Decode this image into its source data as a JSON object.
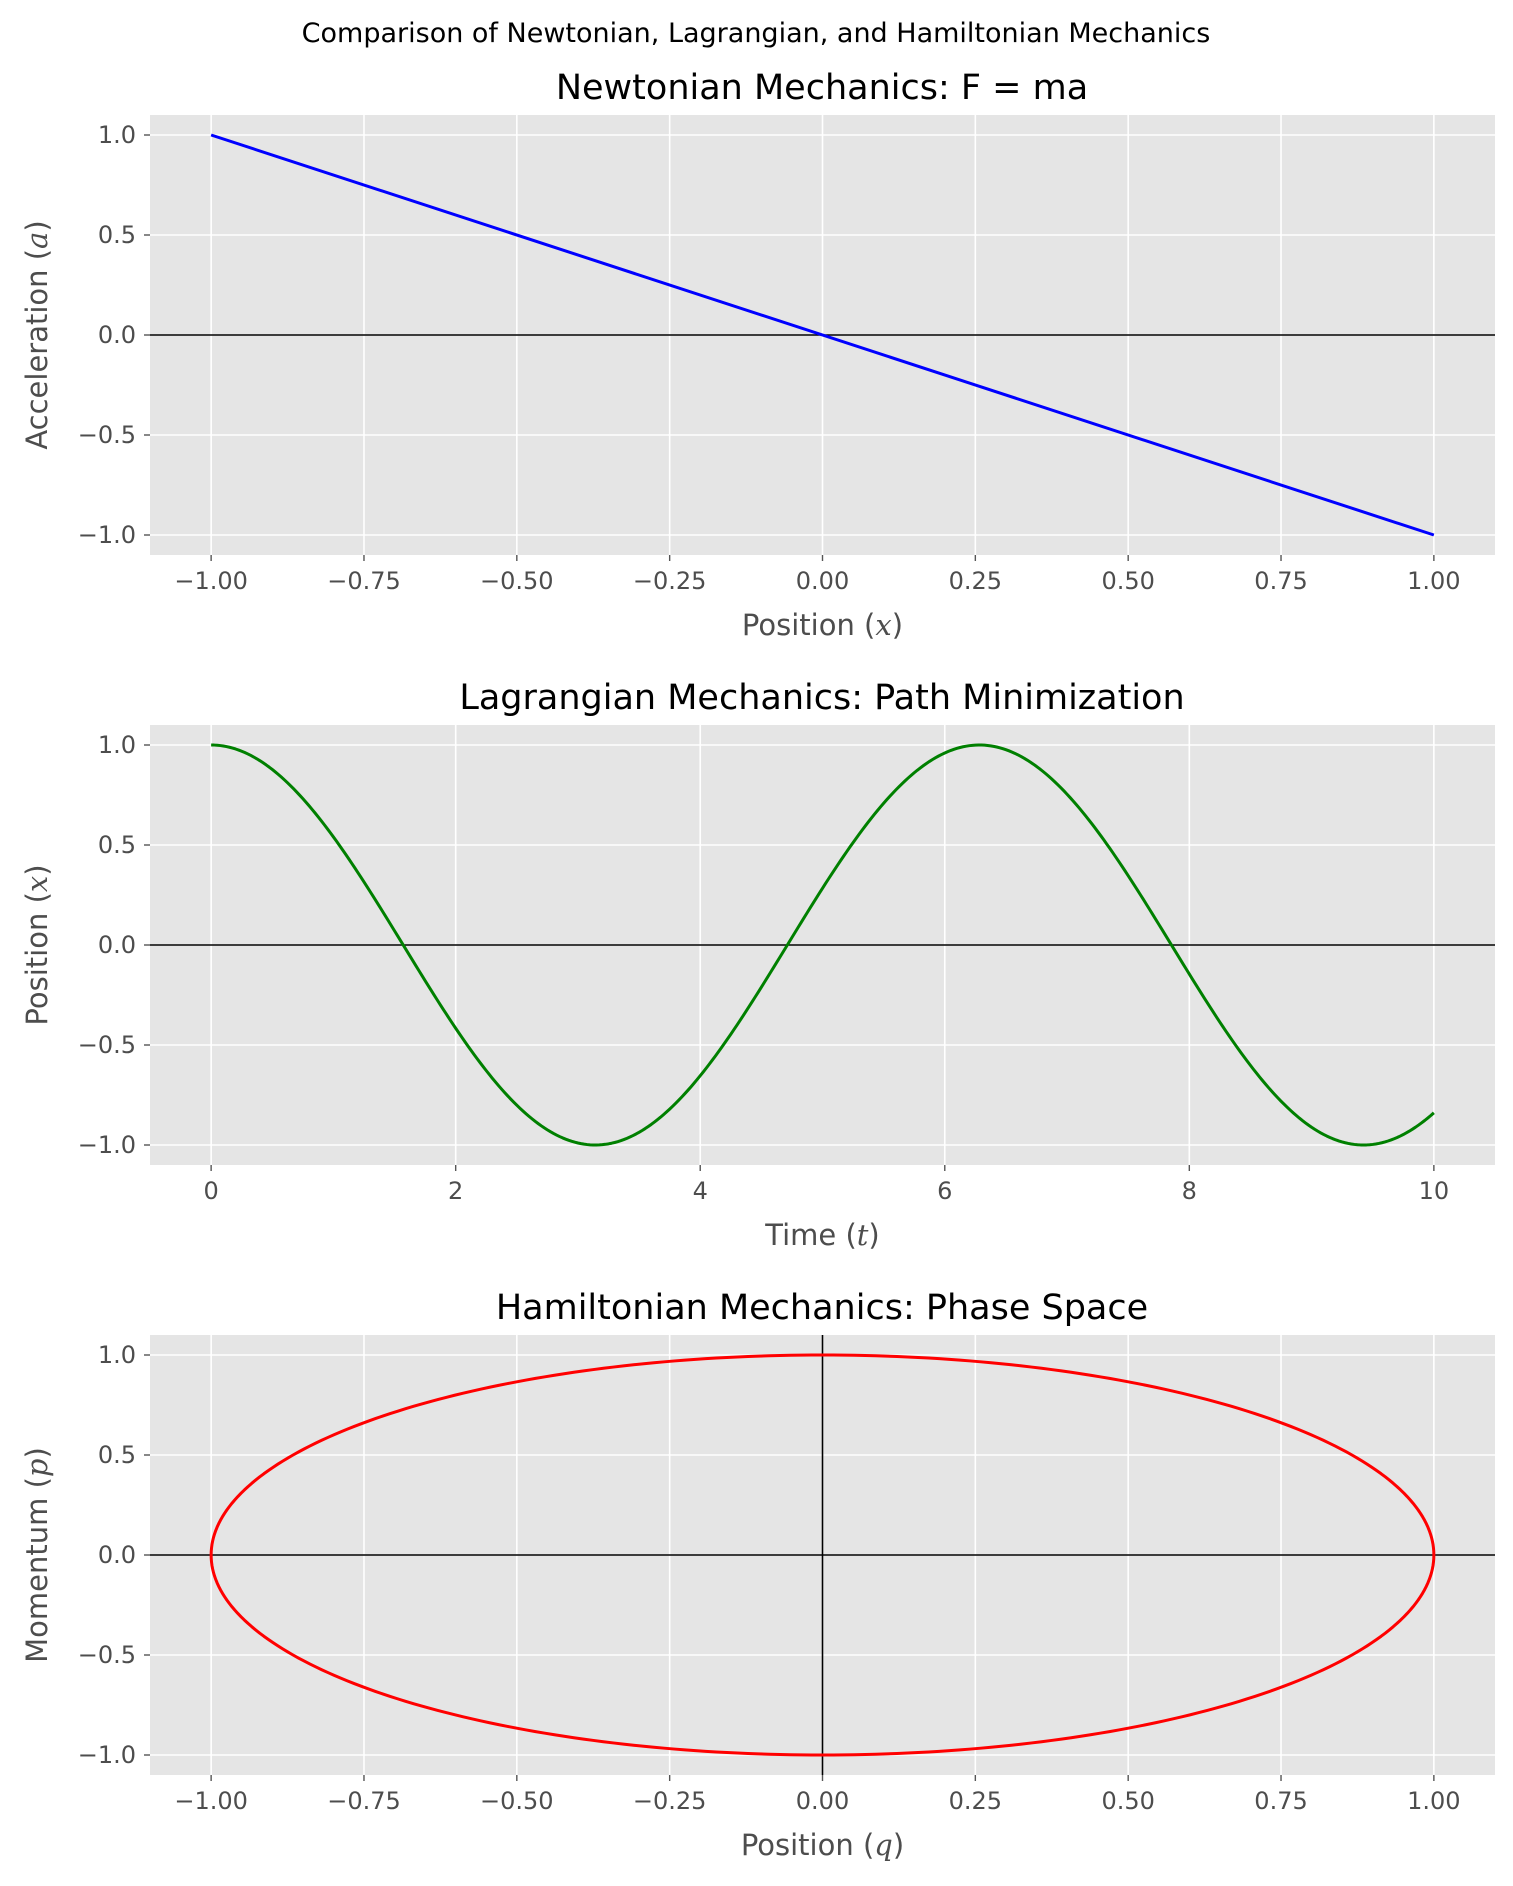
{
  "suptitle": "Comparison of Newtonian, Lagrangian, and Hamiltonian Mechanics",
  "chart_data": [
    {
      "type": "line",
      "title": "Newtonian Mechanics: F = ma",
      "xlabel_text": "Position (",
      "xlabel_math": "x",
      "ylabel_text": "Acceleration (",
      "ylabel_math": "a",
      "xlim": [
        -1.1,
        1.1
      ],
      "ylim": [
        -1.1,
        1.1
      ],
      "xticks": [
        -1.0,
        -0.75,
        -0.5,
        -0.25,
        0.0,
        0.25,
        0.5,
        0.75,
        1.0
      ],
      "xtick_labels": [
        "−1.00",
        "−0.75",
        "−0.50",
        "−0.25",
        "0.00",
        "0.25",
        "0.50",
        "0.75",
        "1.00"
      ],
      "yticks": [
        1.0,
        0.5,
        0.0,
        -0.5,
        -1.0
      ],
      "ytick_labels": [
        "1.0",
        "0.5",
        "0.0",
        "−0.5",
        "−1.0"
      ],
      "grid": true,
      "hline": 0,
      "vline": null,
      "series": [
        {
          "color": "#0000ff",
          "function": "a = -x",
          "x": [
            -1.0,
            1.0
          ],
          "y": [
            1.0,
            -1.0
          ]
        }
      ]
    },
    {
      "type": "line",
      "title": "Lagrangian Mechanics: Path Minimization",
      "xlabel_text": "Time (",
      "xlabel_math": "t",
      "ylabel_text": "Position (",
      "ylabel_math": "x",
      "xlim": [
        -0.5,
        10.5
      ],
      "ylim": [
        -1.1,
        1.1
      ],
      "xticks": [
        0,
        2,
        4,
        6,
        8,
        10
      ],
      "xtick_labels": [
        "0",
        "2",
        "4",
        "6",
        "8",
        "10"
      ],
      "yticks": [
        1.0,
        0.5,
        0.0,
        -0.5,
        -1.0
      ],
      "ytick_labels": [
        "1.0",
        "0.5",
        "0.0",
        "−0.5",
        "−1.0"
      ],
      "grid": true,
      "hline": 0,
      "vline": null,
      "series": [
        {
          "color": "#008000",
          "function": "x = cos(t), t from 0 to 10",
          "x": [
            0,
            0.5,
            1,
            1.5,
            2,
            2.5,
            3,
            3.5,
            4,
            4.5,
            5,
            5.5,
            6,
            6.5,
            7,
            7.5,
            8,
            8.5,
            9,
            9.5,
            10
          ],
          "y": [
            1.0,
            0.878,
            0.54,
            0.071,
            -0.416,
            -0.801,
            -0.99,
            -0.936,
            -0.654,
            -0.211,
            0.284,
            0.709,
            0.96,
            0.977,
            0.754,
            0.347,
            -0.146,
            -0.602,
            -0.911,
            -0.997,
            -0.839
          ]
        }
      ]
    },
    {
      "type": "line",
      "title": "Hamiltonian Mechanics: Phase Space",
      "xlabel_text": "Position (",
      "xlabel_math": "q",
      "ylabel_text": "Momentum (",
      "ylabel_math": "p",
      "xlim": [
        -1.1,
        1.1
      ],
      "ylim": [
        -1.1,
        1.1
      ],
      "xticks": [
        -1.0,
        -0.75,
        -0.5,
        -0.25,
        0.0,
        0.25,
        0.5,
        0.75,
        1.0
      ],
      "xtick_labels": [
        "−1.00",
        "−0.75",
        "−0.50",
        "−0.25",
        "0.00",
        "0.25",
        "0.50",
        "0.75",
        "1.00"
      ],
      "yticks": [
        1.0,
        0.5,
        0.0,
        -0.5,
        -1.0
      ],
      "ytick_labels": [
        "1.0",
        "0.5",
        "0.0",
        "−0.5",
        "−1.0"
      ],
      "grid": true,
      "hline": 0,
      "vline": 0,
      "series": [
        {
          "color": "#ff0000",
          "function": "q = cos(s), p = sin(s): unit circle in phase space",
          "x": [
            1.0,
            0.866,
            0.5,
            0.0,
            -0.5,
            -0.866,
            -1.0,
            -0.866,
            -0.5,
            0.0,
            0.5,
            0.866,
            1.0
          ],
          "y": [
            0.0,
            0.5,
            0.866,
            1.0,
            0.866,
            0.5,
            0.0,
            -0.5,
            -0.866,
            -1.0,
            -0.866,
            -0.5,
            0.0
          ]
        }
      ]
    }
  ]
}
